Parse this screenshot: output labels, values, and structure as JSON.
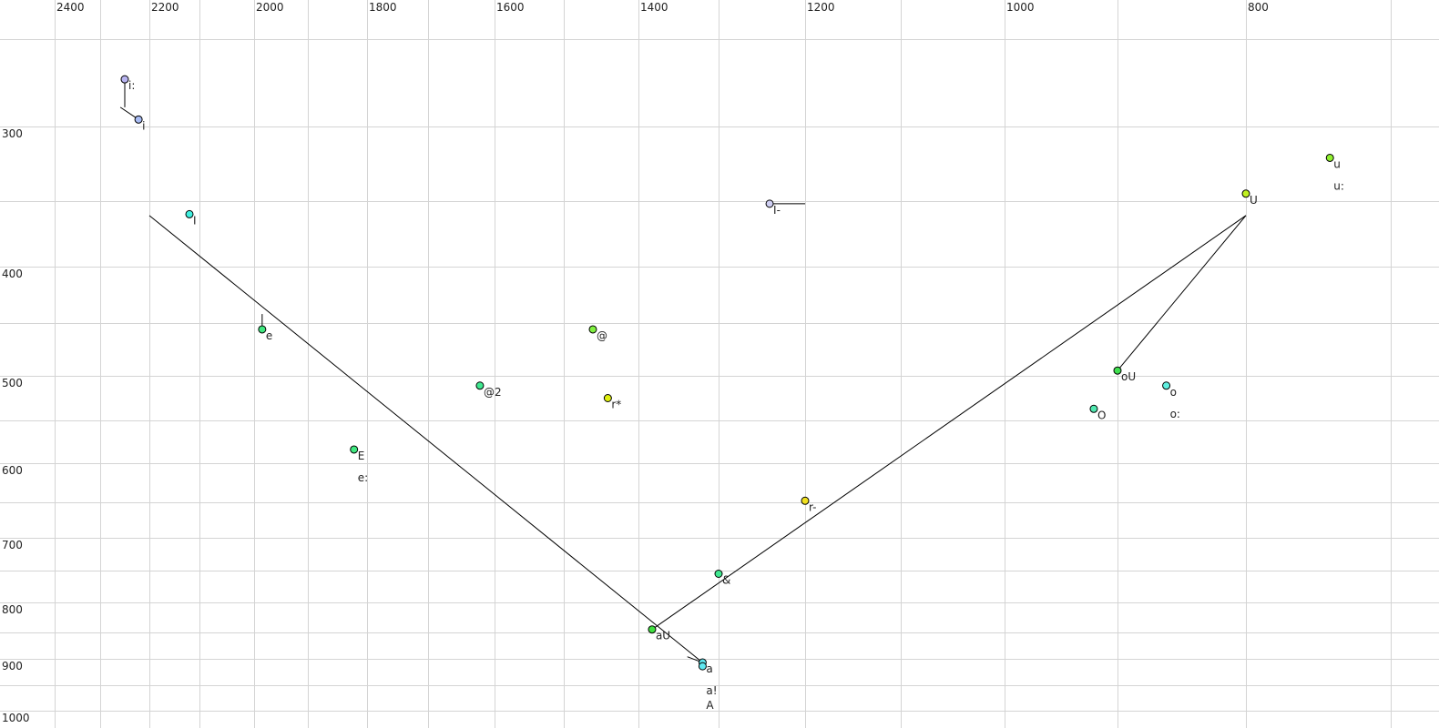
{
  "chart_data": {
    "type": "scatter",
    "title": "",
    "xlabel": "",
    "ylabel": "",
    "x_reversed": true,
    "y_reversed": true,
    "x_scale": "nonlinear (auditory)",
    "y_scale": "nonlinear (auditory)",
    "grid": true,
    "xlim": [
      2450,
      690
    ],
    "ylim": [
      230,
      1020
    ],
    "x_tick_labels": [
      "2400",
      "2200",
      "2000",
      "1800",
      "1600",
      "1400",
      "1200",
      "1000",
      "800"
    ],
    "x_ticks": [
      2400,
      2200,
      2000,
      1800,
      1600,
      1400,
      1200,
      1000,
      800
    ],
    "x_grid": [
      2400,
      2300,
      2200,
      2100,
      2000,
      1900,
      1800,
      1700,
      1600,
      1500,
      1400,
      1300,
      1200,
      1100,
      1000,
      900,
      800,
      700
    ],
    "y_tick_labels": [
      "300",
      "400",
      "500",
      "600",
      "700",
      "800",
      "900",
      "1000"
    ],
    "y_ticks": [
      300,
      400,
      500,
      600,
      700,
      800,
      900,
      1000
    ],
    "y_grid": [
      250,
      300,
      350,
      400,
      450,
      500,
      550,
      600,
      650,
      700,
      750,
      800,
      850,
      900,
      950,
      1000
    ],
    "points": [
      {
        "labels": [
          "i:"
        ],
        "x": 2250,
        "y": 273,
        "color": "#b8b4f0"
      },
      {
        "labels": [
          "i"
        ],
        "x": 2222,
        "y": 296,
        "color": "#a8bcf4"
      },
      {
        "labels": [
          "I"
        ],
        "x": 2120,
        "y": 360,
        "color": "#40f0e0"
      },
      {
        "labels": [
          "e"
        ],
        "x": 1985,
        "y": 456,
        "color": "#40e880"
      },
      {
        "labels": [
          "E",
          "e:"
        ],
        "x": 1822,
        "y": 584,
        "color": "#40e880"
      },
      {
        "labels": [
          "@2"
        ],
        "x": 1622,
        "y": 511,
        "color": "#40e890"
      },
      {
        "labels": [
          "@"
        ],
        "x": 1461,
        "y": 456,
        "color": "#80f040"
      },
      {
        "labels": [
          "r*"
        ],
        "x": 1441,
        "y": 525,
        "color": "#e0f010"
      },
      {
        "labels": [
          "I-"
        ],
        "x": 1241,
        "y": 352,
        "color": "#d0d0f4"
      },
      {
        "labels": [
          "r-"
        ],
        "x": 1200,
        "y": 648,
        "color": "#f0e020"
      },
      {
        "labels": [
          "&"
        ],
        "x": 1300,
        "y": 755,
        "color": "#40e890"
      },
      {
        "labels": [
          "aU"
        ],
        "x": 1383,
        "y": 845,
        "color": "#40e040"
      },
      {
        "labels": [
          "a",
          "a!"
        ],
        "x": 1320,
        "y": 907,
        "color": "#60e8f0"
      },
      {
        "labels": [
          "A"
        ],
        "x": 1320,
        "y": 914,
        "color": "#60e8f0"
      },
      {
        "labels": [
          "oU"
        ],
        "x": 900,
        "y": 495,
        "color": "#40e050"
      },
      {
        "labels": [
          "O"
        ],
        "x": 921,
        "y": 537,
        "color": "#50e8b0"
      },
      {
        "labels": [
          "o",
          "o:"
        ],
        "x": 862,
        "y": 511,
        "color": "#60f0e0"
      },
      {
        "labels": [
          "U"
        ],
        "x": 800,
        "y": 345,
        "color": "#c0f020"
      },
      {
        "labels": [
          "u",
          "u:"
        ],
        "x": 742,
        "y": 321,
        "color": "#90f030"
      }
    ],
    "trajectories": [
      {
        "from": [
          2250,
          273
        ],
        "to": [
          2250,
          289
        ]
      },
      {
        "from": [
          2259,
          289
        ],
        "to": [
          2222,
          296
        ]
      },
      {
        "from": [
          1985,
          442
        ],
        "to": [
          1985,
          456
        ]
      },
      {
        "from": [
          1241,
          352
        ],
        "to": [
          1200,
          352
        ]
      },
      {
        "from": [
          2200,
          361
        ],
        "to": [
          1320,
          907
        ]
      },
      {
        "from": [
          1339,
          896
        ],
        "to": [
          1320,
          907
        ]
      },
      {
        "from": [
          1383,
          845
        ],
        "to": [
          800,
          361
        ]
      },
      {
        "from": [
          800,
          361
        ],
        "to": [
          900,
          495
        ]
      }
    ]
  }
}
